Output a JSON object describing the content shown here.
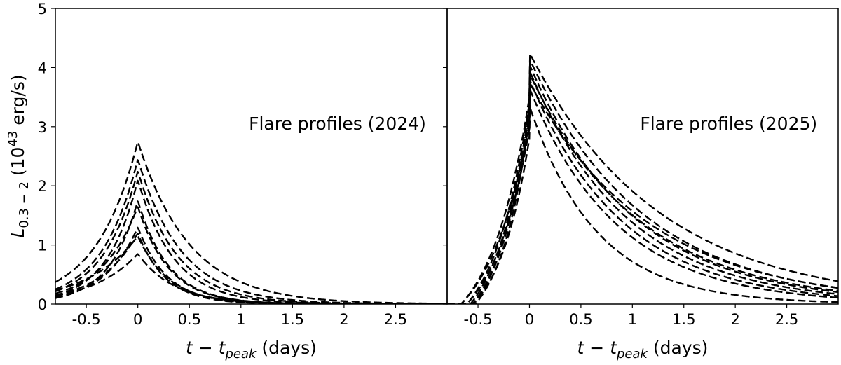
{
  "chart_data": [
    {
      "type": "line",
      "panel": "left",
      "annotation": "Flare profiles (2024)",
      "xlabel_main": "t − t",
      "xlabel_sub": "peak",
      "xlabel_unit": "(days)",
      "ylabel_main": "L",
      "ylabel_sub": "0.3 − 2",
      "ylabel_unit_pre": "(10",
      "ylabel_sup": "43",
      "ylabel_unit_post": " erg/s)",
      "xlim": [
        -0.8,
        3.0
      ],
      "ylim": [
        0,
        5
      ],
      "xticks": [
        -0.5,
        0,
        0.5,
        1,
        1.5,
        2,
        2.5
      ],
      "xtick_labels": [
        "-0.5",
        "0",
        "0.5",
        "1",
        "1.5",
        "2",
        "2.5"
      ],
      "yticks": [
        0,
        1,
        2,
        3,
        4,
        5
      ],
      "ytick_labels": [
        "0",
        "1",
        "2",
        "3",
        "4",
        "5"
      ],
      "line_style": "black dashed",
      "series": [
        {
          "peak": 2.75,
          "rise": 0.4,
          "decay": 0.5
        },
        {
          "peak": 2.45,
          "rise": 0.35,
          "decay": 0.42
        },
        {
          "peak": 2.25,
          "rise": 0.34,
          "decay": 0.38
        },
        {
          "peak": 2.1,
          "rise": 0.3,
          "decay": 0.35
        },
        {
          "peak": 1.75,
          "rise": 0.28,
          "decay": 0.3
        },
        {
          "peak": 1.65,
          "rise": 0.36,
          "decay": 0.3
        },
        {
          "peak": 1.3,
          "rise": 0.33,
          "decay": 0.28
        },
        {
          "peak": 1.2,
          "rise": 0.38,
          "decay": 0.27
        },
        {
          "peak": 1.15,
          "rise": 0.5,
          "decay": 0.3
        },
        {
          "peak": 0.85,
          "rise": 0.45,
          "decay": 0.35
        }
      ]
    },
    {
      "type": "line",
      "panel": "right",
      "annotation": "Flare profiles (2025)",
      "xlabel_main": "t − t",
      "xlabel_sub": "peak",
      "xlabel_unit": "(days)",
      "xlim": [
        -0.8,
        3.0
      ],
      "ylim": [
        0,
        5
      ],
      "xticks": [
        -0.5,
        0,
        0.5,
        1,
        1.5,
        2,
        2.5
      ],
      "xtick_labels": [
        "-0.5",
        "0",
        "0.5",
        "1",
        "1.5",
        "2",
        "2.5"
      ],
      "line_style": "black dashed",
      "series": [
        {
          "peak": 4.25,
          "rise": 0.38,
          "decay": 1.25,
          "offset": 0.6
        },
        {
          "peak": 4.15,
          "rise": 0.35,
          "decay": 1.1,
          "offset": 0.55
        },
        {
          "peak": 4.05,
          "rise": 0.33,
          "decay": 1.0,
          "offset": 0.52
        },
        {
          "peak": 3.95,
          "rise": 0.32,
          "decay": 0.95,
          "offset": 0.5
        },
        {
          "peak": 3.9,
          "rise": 0.3,
          "decay": 1.05,
          "offset": 0.5
        },
        {
          "peak": 3.8,
          "rise": 0.4,
          "decay": 0.9,
          "offset": 0.6
        },
        {
          "peak": 3.75,
          "rise": 0.28,
          "decay": 1.15,
          "offset": 0.48
        },
        {
          "peak": 3.65,
          "rise": 0.36,
          "decay": 0.85,
          "offset": 0.55
        },
        {
          "peak": 3.35,
          "rise": 0.3,
          "decay": 0.65,
          "offset": 0.5
        }
      ]
    }
  ]
}
